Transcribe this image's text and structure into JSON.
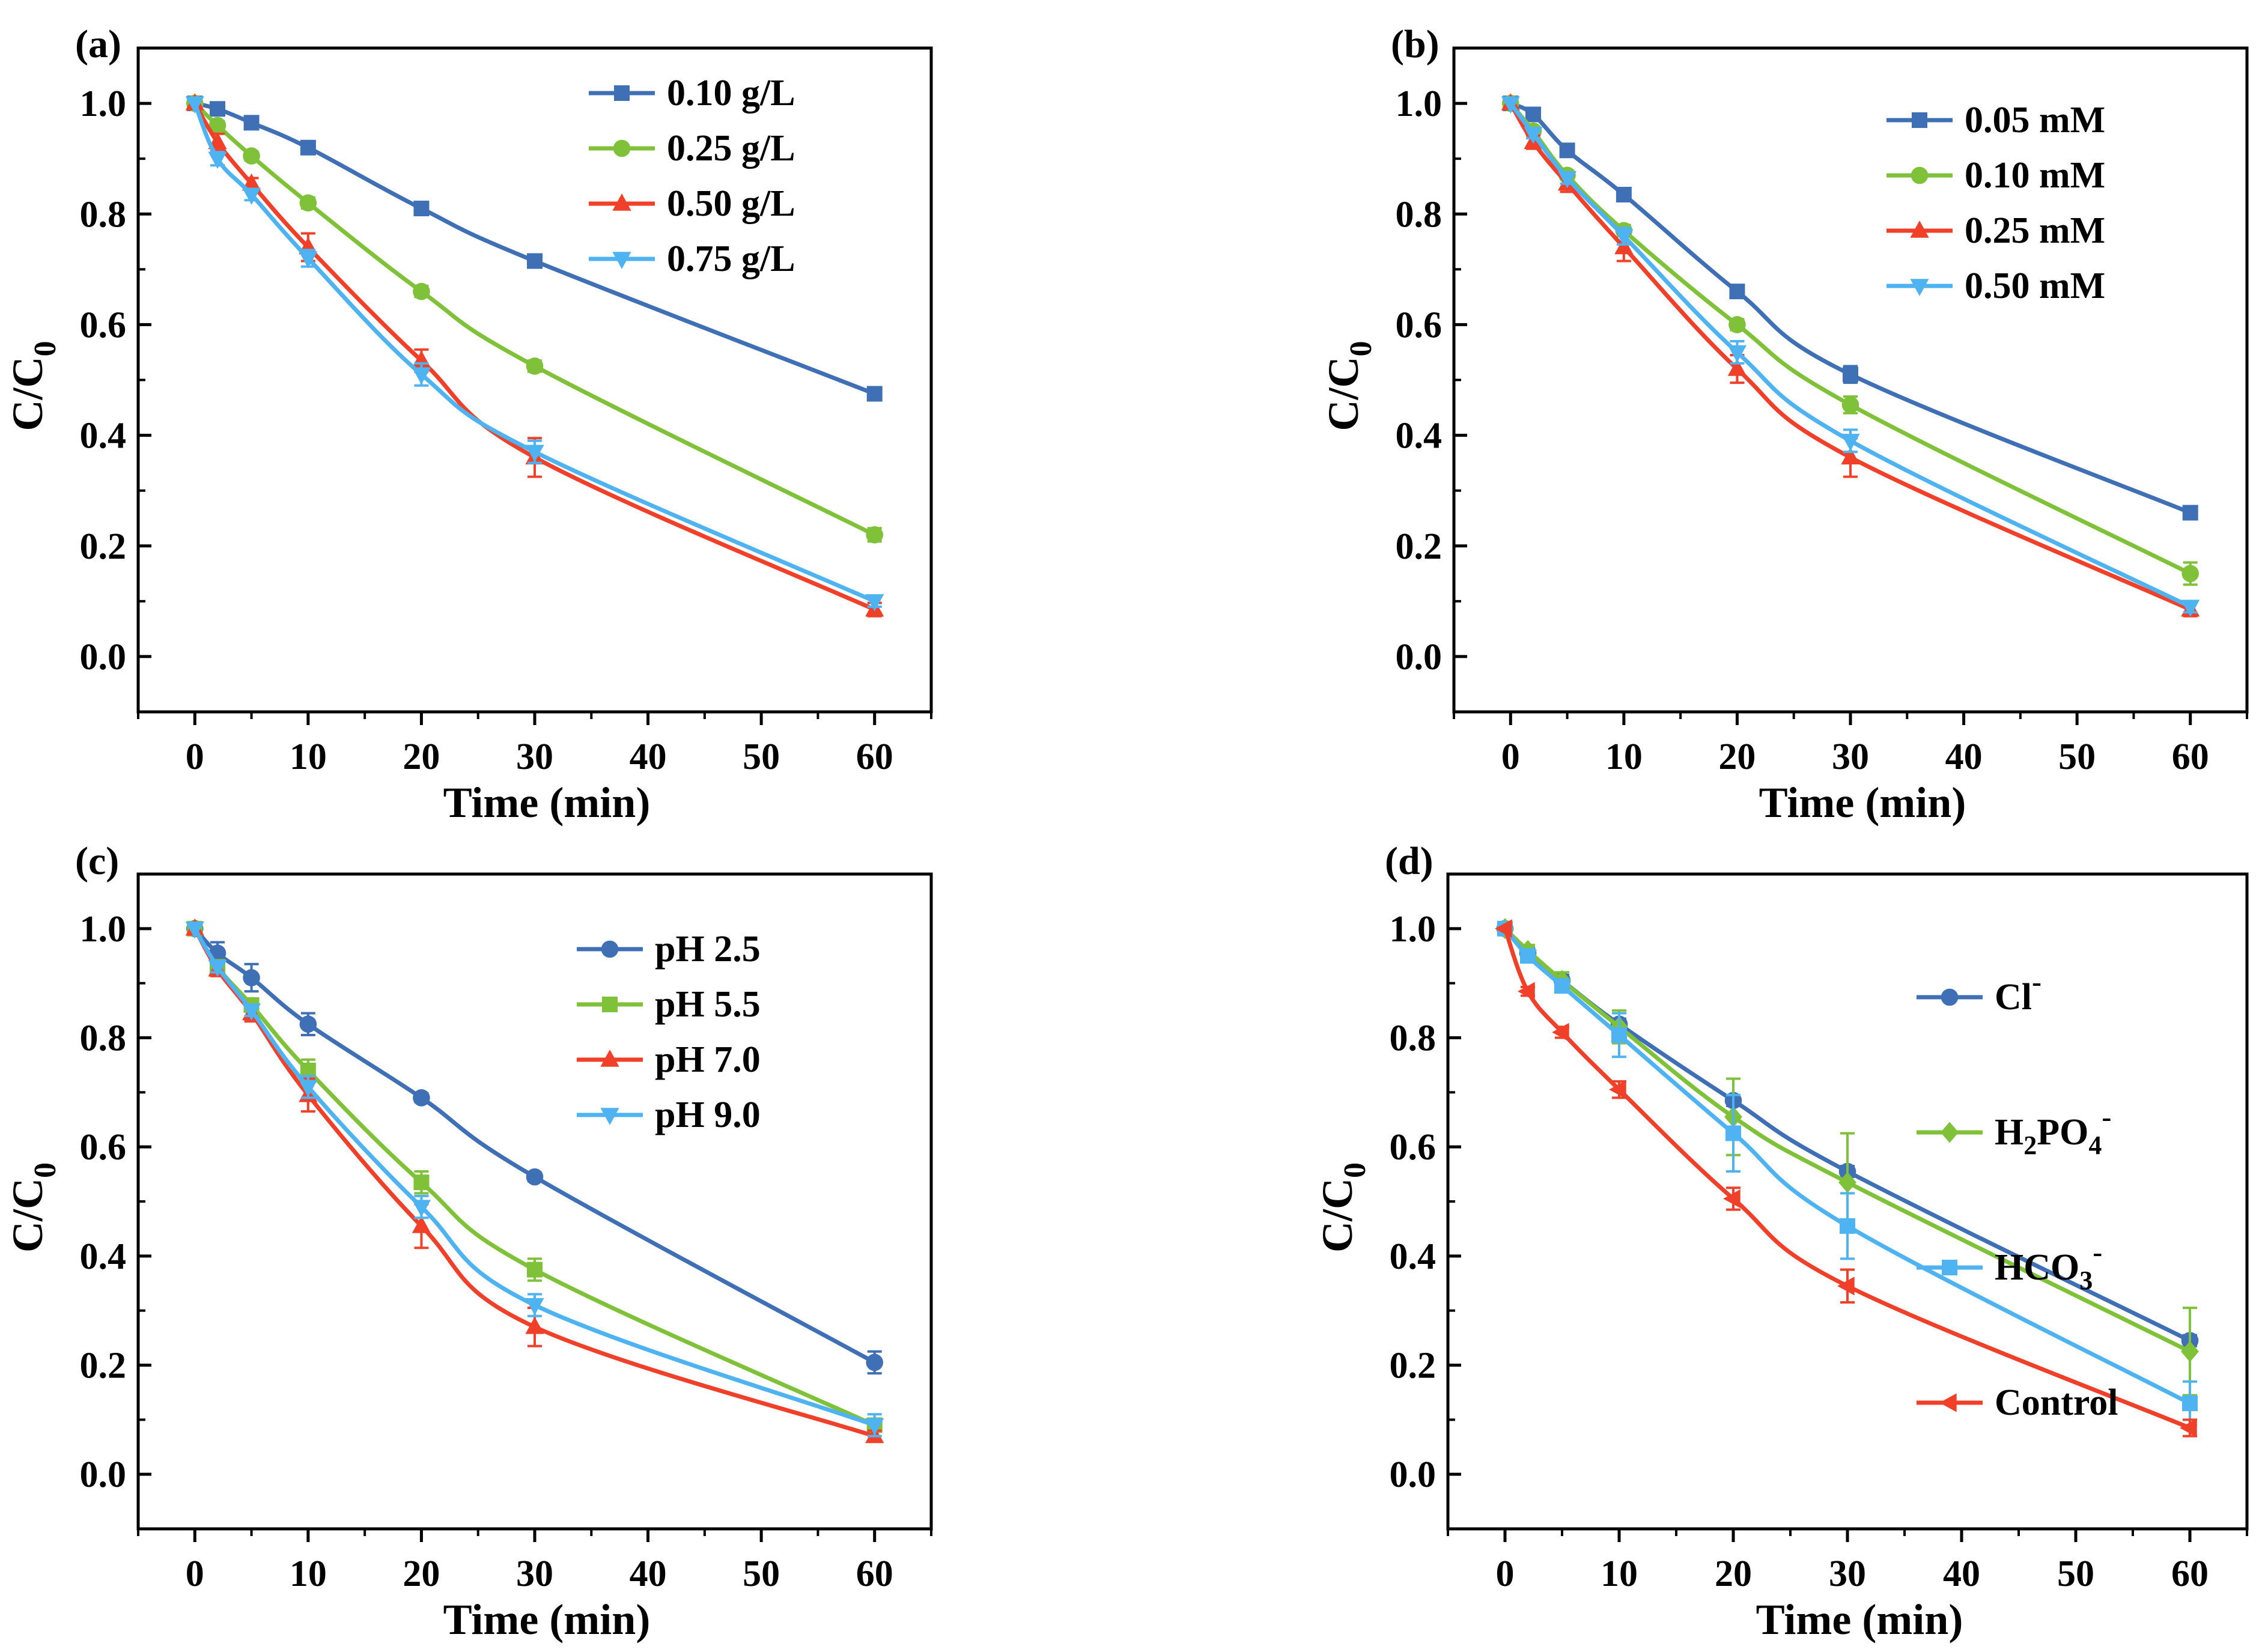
{
  "chart_data": [
    {
      "panel": "(a)",
      "type": "line",
      "xlabel": "Time (min)",
      "ylabel": "C/C",
      "ylabel_sub": "0",
      "xlim": [
        -5,
        65
      ],
      "ylim": [
        -0.1,
        1.1
      ],
      "xticks": [
        0,
        10,
        20,
        30,
        40,
        50,
        60
      ],
      "yticks": [
        0.0,
        0.2,
        0.4,
        0.6,
        0.8,
        1.0
      ],
      "xtick_labels": [
        "0",
        "10",
        "20",
        "30",
        "40",
        "50",
        "60"
      ],
      "ytick_labels": [
        "0.0",
        "0.2",
        "0.4",
        "0.6",
        "0.8",
        "1.0"
      ],
      "legend": "top-right",
      "grid": false,
      "series": [
        {
          "name": "0.10 g/L",
          "color": "#3f6fb5",
          "marker": "square",
          "x": [
            0,
            2,
            5,
            10,
            20,
            30,
            60
          ],
          "y": [
            1.0,
            0.99,
            0.965,
            0.92,
            0.81,
            0.715,
            0.475
          ],
          "err": [
            0.005,
            0.005,
            0.005,
            0.008,
            0.008,
            0.008,
            0.008
          ]
        },
        {
          "name": "0.25 g/L",
          "color": "#7fc23a",
          "marker": "circle",
          "x": [
            0,
            2,
            5,
            10,
            20,
            30,
            60
          ],
          "y": [
            1.0,
            0.96,
            0.905,
            0.82,
            0.66,
            0.525,
            0.22
          ],
          "err": [
            0.005,
            0.008,
            0.008,
            0.01,
            0.01,
            0.01,
            0.012
          ]
        },
        {
          "name": "0.50 g/L",
          "color": "#f0402a",
          "marker": "triangle-up",
          "x": [
            0,
            2,
            5,
            10,
            20,
            30,
            60
          ],
          "y": [
            1.0,
            0.93,
            0.855,
            0.74,
            0.535,
            0.36,
            0.085
          ],
          "err": [
            0.005,
            0.015,
            0.01,
            0.025,
            0.02,
            0.035,
            0.012
          ]
        },
        {
          "name": "0.75 g/L",
          "color": "#4eb3f0",
          "marker": "triangle-down",
          "x": [
            0,
            2,
            5,
            10,
            20,
            30,
            60
          ],
          "y": [
            1.0,
            0.9,
            0.835,
            0.72,
            0.51,
            0.37,
            0.1
          ],
          "err": [
            0.005,
            0.012,
            0.01,
            0.015,
            0.02,
            0.02,
            0.01
          ]
        }
      ]
    },
    {
      "panel": "(b)",
      "type": "line",
      "xlabel": "Time (min)",
      "ylabel": "C/C",
      "ylabel_sub": "0",
      "xlim": [
        -5,
        65
      ],
      "ylim": [
        -0.1,
        1.1
      ],
      "xticks": [
        0,
        10,
        20,
        30,
        40,
        50,
        60
      ],
      "yticks": [
        0.0,
        0.2,
        0.4,
        0.6,
        0.8,
        1.0
      ],
      "xtick_labels": [
        "0",
        "10",
        "20",
        "30",
        "40",
        "50",
        "60"
      ],
      "ytick_labels": [
        "0.0",
        "0.2",
        "0.4",
        "0.6",
        "0.8",
        "1.0"
      ],
      "legend": "top-right",
      "grid": false,
      "series": [
        {
          "name": "0.05 mM",
          "color": "#3f6fb5",
          "marker": "square",
          "x": [
            0,
            2,
            5,
            10,
            20,
            30,
            60
          ],
          "y": [
            1.0,
            0.98,
            0.915,
            0.835,
            0.66,
            0.51,
            0.26
          ],
          "err": [
            0.005,
            0.005,
            0.005,
            0.008,
            0.008,
            0.015,
            0.008
          ]
        },
        {
          "name": "0.10 mM",
          "color": "#7fc23a",
          "marker": "circle",
          "x": [
            0,
            2,
            5,
            10,
            20,
            30,
            60
          ],
          "y": [
            1.0,
            0.95,
            0.87,
            0.77,
            0.6,
            0.455,
            0.15
          ],
          "err": [
            0.005,
            0.008,
            0.008,
            0.01,
            0.01,
            0.015,
            0.02
          ]
        },
        {
          "name": "0.25 mM",
          "color": "#f0402a",
          "marker": "triangle-up",
          "x": [
            0,
            2,
            5,
            10,
            20,
            30,
            60
          ],
          "y": [
            1.0,
            0.93,
            0.855,
            0.74,
            0.52,
            0.36,
            0.085
          ],
          "err": [
            0.005,
            0.012,
            0.015,
            0.025,
            0.025,
            0.035,
            0.012
          ]
        },
        {
          "name": "0.50 mM",
          "color": "#4eb3f0",
          "marker": "triangle-down",
          "x": [
            0,
            2,
            5,
            10,
            20,
            30,
            60
          ],
          "y": [
            1.0,
            0.945,
            0.865,
            0.76,
            0.55,
            0.39,
            0.09
          ],
          "err": [
            0.005,
            0.008,
            0.01,
            0.015,
            0.02,
            0.02,
            0.01
          ]
        }
      ]
    },
    {
      "panel": "(c)",
      "type": "line",
      "xlabel": "Time (min)",
      "ylabel": "C/C",
      "ylabel_sub": "0",
      "xlim": [
        -5,
        65
      ],
      "ylim": [
        -0.1,
        1.1
      ],
      "xticks": [
        0,
        10,
        20,
        30,
        40,
        50,
        60
      ],
      "yticks": [
        0.0,
        0.2,
        0.4,
        0.6,
        0.8,
        1.0
      ],
      "xtick_labels": [
        "0",
        "10",
        "20",
        "30",
        "40",
        "50",
        "60"
      ],
      "ytick_labels": [
        "0.0",
        "0.2",
        "0.4",
        "0.6",
        "0.8",
        "1.0"
      ],
      "legend": "top-right",
      "grid": false,
      "series": [
        {
          "name": "pH  2.5",
          "color": "#3f6fb5",
          "marker": "circle",
          "x": [
            0,
            2,
            5,
            10,
            20,
            30,
            60
          ],
          "y": [
            1.0,
            0.955,
            0.91,
            0.825,
            0.69,
            0.545,
            0.205
          ],
          "err": [
            0.005,
            0.02,
            0.025,
            0.02,
            0.008,
            0.008,
            0.02
          ]
        },
        {
          "name": "pH  5.5",
          "color": "#7fc23a",
          "marker": "square",
          "x": [
            0,
            2,
            5,
            10,
            20,
            30,
            60
          ],
          "y": [
            1.0,
            0.93,
            0.86,
            0.74,
            0.535,
            0.375,
            0.09
          ],
          "err": [
            0.005,
            0.01,
            0.01,
            0.02,
            0.02,
            0.02,
            0.01
          ]
        },
        {
          "name": "pH  7.0",
          "color": "#f0402a",
          "marker": "triangle-up",
          "x": [
            0,
            2,
            5,
            10,
            20,
            30,
            60
          ],
          "y": [
            1.0,
            0.925,
            0.845,
            0.695,
            0.455,
            0.27,
            0.07
          ],
          "err": [
            0.005,
            0.012,
            0.015,
            0.03,
            0.04,
            0.035,
            0.01
          ]
        },
        {
          "name": "pH  9.0",
          "color": "#4eb3f0",
          "marker": "triangle-down",
          "x": [
            0,
            2,
            5,
            10,
            20,
            30,
            60
          ],
          "y": [
            1.0,
            0.93,
            0.85,
            0.71,
            0.49,
            0.31,
            0.09
          ],
          "err": [
            0.005,
            0.01,
            0.01,
            0.02,
            0.02,
            0.02,
            0.02
          ]
        }
      ]
    },
    {
      "panel": "(d)",
      "type": "line",
      "xlabel": "Time (min)",
      "ylabel": "C/C",
      "ylabel_sub": "0",
      "xlim": [
        -5,
        65
      ],
      "ylim": [
        -0.1,
        1.1
      ],
      "xticks": [
        0,
        10,
        20,
        30,
        40,
        50,
        60
      ],
      "yticks": [
        0.0,
        0.2,
        0.4,
        0.6,
        0.8,
        1.0
      ],
      "xtick_labels": [
        "0",
        "10",
        "20",
        "30",
        "40",
        "50",
        "60"
      ],
      "ytick_labels": [
        "0.0",
        "0.2",
        "0.4",
        "0.6",
        "0.8",
        "1.0"
      ],
      "legend": "right",
      "grid": false,
      "series": [
        {
          "name": "Cl",
          "name_sup": "-",
          "color": "#3f6fb5",
          "marker": "circle",
          "x": [
            0,
            2,
            5,
            10,
            20,
            30,
            60
          ],
          "y": [
            1.0,
            0.955,
            0.905,
            0.825,
            0.685,
            0.555,
            0.245
          ],
          "err": [
            0.005,
            0.01,
            0.01,
            0.01,
            0.01,
            0.01,
            0.01
          ]
        },
        {
          "name": "H",
          "name_sub": "2",
          "name_rest": "PO",
          "name_sub2": "4",
          "name_sup": "-",
          "color": "#7fc23a",
          "marker": "diamond",
          "x": [
            0,
            2,
            5,
            10,
            20,
            30,
            60
          ],
          "y": [
            1.0,
            0.96,
            0.905,
            0.82,
            0.655,
            0.535,
            0.225
          ],
          "err": [
            0.005,
            0.01,
            0.015,
            0.03,
            0.07,
            0.09,
            0.08
          ]
        },
        {
          "name": "HCO",
          "name_sub": "3",
          "name_sup": "-",
          "color": "#4eb3f0",
          "marker": "square",
          "x": [
            0,
            2,
            5,
            10,
            20,
            30,
            60
          ],
          "y": [
            1.0,
            0.95,
            0.895,
            0.805,
            0.625,
            0.455,
            0.13
          ],
          "err": [
            0.005,
            0.01,
            0.01,
            0.04,
            0.07,
            0.06,
            0.04
          ]
        },
        {
          "name": "Control",
          "color": "#f0402a",
          "marker": "triangle-left",
          "x": [
            0,
            2,
            5,
            10,
            20,
            30,
            60
          ],
          "y": [
            1.0,
            0.885,
            0.81,
            0.705,
            0.505,
            0.345,
            0.085
          ],
          "err": [
            0.005,
            0.008,
            0.01,
            0.015,
            0.02,
            0.03,
            0.015
          ]
        }
      ]
    }
  ]
}
